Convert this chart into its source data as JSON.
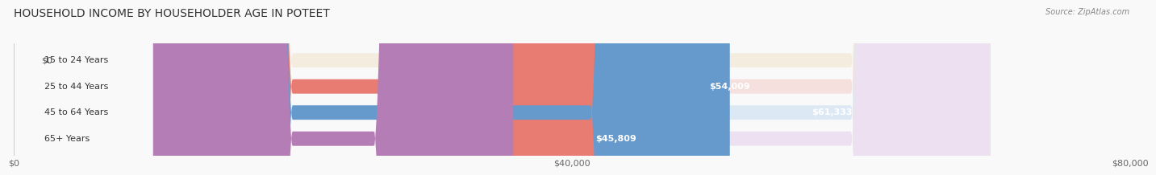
{
  "title": "HOUSEHOLD INCOME BY HOUSEHOLDER AGE IN POTEET",
  "source": "Source: ZipAtlas.com",
  "categories": [
    "15 to 24 Years",
    "25 to 44 Years",
    "45 to 64 Years",
    "65+ Years"
  ],
  "values": [
    0,
    54009,
    61333,
    45809
  ],
  "labels": [
    "$0",
    "$54,009",
    "$61,333",
    "$45,809"
  ],
  "bar_colors": [
    "#f5d5a0",
    "#e87b72",
    "#6699cc",
    "#b57db5"
  ],
  "bg_colors": [
    "#f5ece0",
    "#f5e0de",
    "#dde8f5",
    "#ede0f0"
  ],
  "xlim": [
    0,
    80000
  ],
  "xticks": [
    0,
    40000,
    80000
  ],
  "xticklabels": [
    "$0",
    "$40,000",
    "$80,000"
  ],
  "bar_height": 0.55,
  "figure_bg": "#f9f9f9",
  "title_fontsize": 10,
  "label_fontsize": 8,
  "tick_fontsize": 8,
  "source_fontsize": 7
}
